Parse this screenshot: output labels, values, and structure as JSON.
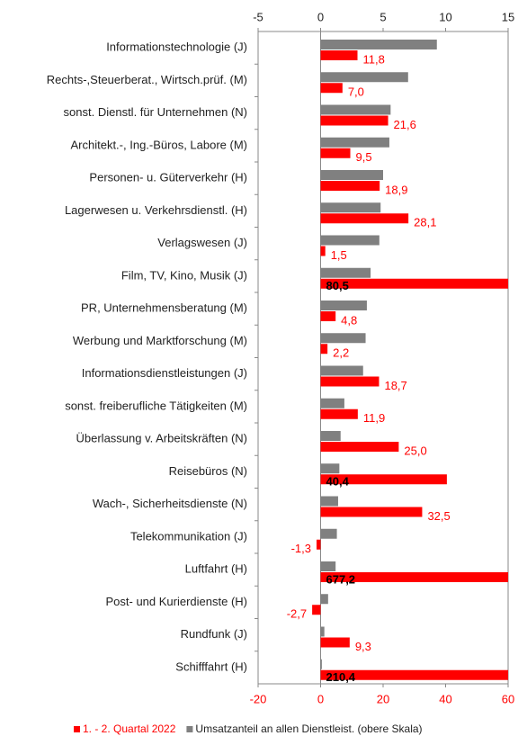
{
  "chart_data": {
    "type": "hbar",
    "categories": [
      "Informationstechnologie (J)",
      "Rechts-,Steuerberat., Wirtsch.prüf. (M)",
      "sonst. Dienstl. für Unternehmen (N)",
      "Architekt.-, Ing.-Büros, Labore (M)",
      "Personen- u. Güterverkehr (H)",
      "Lagerwesen u. Verkehrsdienstl. (H)",
      "Verlagswesen (J)",
      "Film, TV, Kino, Musik (J)",
      "PR, Unternehmensberatung (M)",
      "Werbung und Marktforschung (M)",
      "Informationsdienstleistungen (J)",
      "sonst. freiberufliche Tätigkeiten (M)",
      "Überlassung v. Arbeitskräften (N)",
      "Reisebüros (N)",
      "Wach-, Sicherheitsdienste (N)",
      "Telekommunikation (J)",
      "Luftfahrt (H)",
      "Post- und Kurierdienste (H)",
      "Rundfunk (J)",
      "Schifffahrt (H)"
    ],
    "series": [
      {
        "name": "1. - 2. Quartal 2022",
        "color": "#ff0000",
        "values": [
          11.8,
          7.0,
          21.6,
          9.5,
          18.9,
          28.1,
          1.5,
          80.5,
          4.8,
          2.2,
          18.7,
          11.9,
          25.0,
          40.4,
          32.5,
          -1.3,
          677.2,
          -2.7,
          9.3,
          210.4
        ],
        "value_labels": [
          "11,8",
          "7,0",
          "21,6",
          "9,5",
          "18,9",
          "28,1",
          "1,5",
          "80,5",
          "4,8",
          "2,2",
          "18,7",
          "11,9",
          "25,0",
          "40,4",
          "32,5",
          "-1,3",
          "677,2",
          "-2,7",
          "9,3",
          "210,4"
        ]
      },
      {
        "name": "Umsatzanteil an allen Dienstleist. (obere Skala)",
        "color": "#808080",
        "axis": "x2",
        "values": [
          9.3,
          7.0,
          5.6,
          5.5,
          5.0,
          4.8,
          4.7,
          4.0,
          3.7,
          3.6,
          3.4,
          1.9,
          1.6,
          1.5,
          1.4,
          1.3,
          1.2,
          0.6,
          0.3,
          0.1
        ]
      }
    ],
    "xlim": [
      -20,
      60
    ],
    "xticks": [
      -20,
      0,
      20,
      40,
      60
    ],
    "x2lim": [
      -5,
      15
    ],
    "x2ticks": [
      -5,
      0,
      5,
      10,
      15
    ],
    "legend": "bottom"
  }
}
